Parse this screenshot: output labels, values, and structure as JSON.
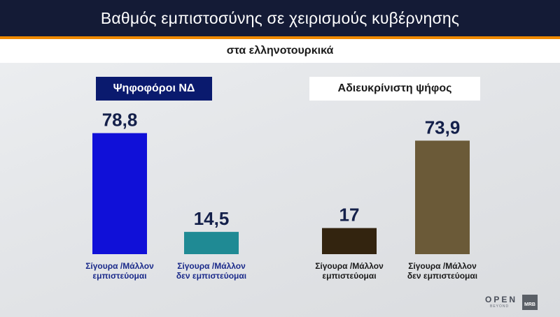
{
  "header": {
    "title": "Βαθμός εμπιστοσύνης σε χειρισμούς κυβέρνησης"
  },
  "subtitle": "στα ελληνοτουρκικά",
  "groups": [
    {
      "label": "Ψηφοφόροι ΝΔ"
    },
    {
      "label": "Αδιευκρίνιστη ψήφος"
    }
  ],
  "chart_data": {
    "type": "bar",
    "title": "Βαθμός εμπιστοσύνης σε χειρισμούς κυβέρνησης",
    "subtitle": "στα ελληνοτουρκικά",
    "ylim": [
      0,
      100
    ],
    "grid": false,
    "bars": [
      {
        "group": "Ψηφοφόροι ΝΔ",
        "label_line1": "Σίγουρα /Μάλλον",
        "label_line2": "εμπιστεύομαι",
        "value": 78.8,
        "display": "78,8",
        "color": "#1010d8"
      },
      {
        "group": "Ψηφοφόροι ΝΔ",
        "label_line1": "Σίγουρα /Μάλλον",
        "label_line2": "δεν εμπιστεύομαι",
        "value": 14.5,
        "display": "14,5",
        "color": "#1f8a94"
      },
      {
        "group": "Αδιευκρίνιστη ψήφος",
        "label_line1": "Σίγουρα /Μάλλον",
        "label_line2": "εμπιστεύομαι",
        "value": 17,
        "display": "17",
        "color": "#33240f"
      },
      {
        "group": "Αδιευκρίνιστη ψήφος",
        "label_line1": "Σίγουρα /Μάλλον",
        "label_line2": "δεν εμπιστεύομαι",
        "value": 73.9,
        "display": "73,9",
        "color": "#6b5a38"
      }
    ]
  },
  "logos": {
    "open": "OPEN",
    "beyond": "BEYOND",
    "mrb": "MRB"
  }
}
